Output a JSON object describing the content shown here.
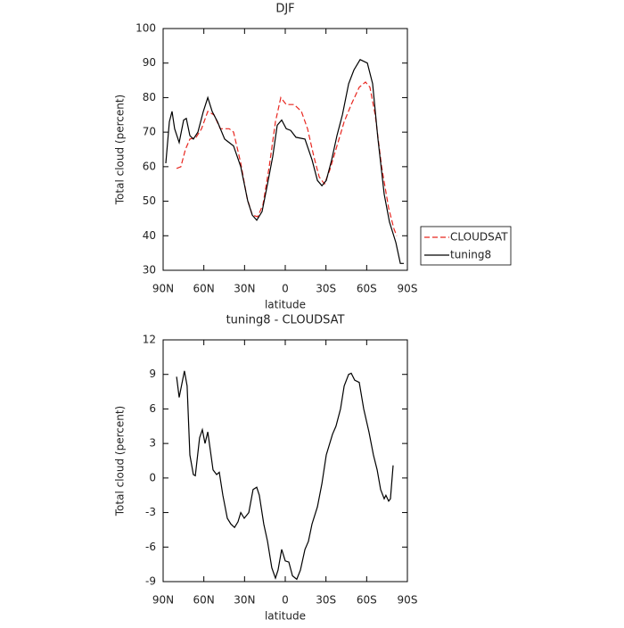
{
  "chart_data": [
    {
      "type": "line",
      "title": "DJF",
      "xlabel": "latitude",
      "ylabel": "Total cloud (percent)",
      "xlim": [
        90,
        -90
      ],
      "xticks": [
        {
          "value": 90,
          "label": "90N"
        },
        {
          "value": 60,
          "label": "60N"
        },
        {
          "value": 30,
          "label": "30N"
        },
        0,
        {
          "value": -30,
          "label": "30S"
        },
        {
          "value": -60,
          "label": "60S"
        },
        {
          "value": -90,
          "label": "90S"
        }
      ],
      "ylim": [
        30,
        100
      ],
      "yticks": [
        30,
        40,
        50,
        60,
        70,
        80,
        90,
        100
      ],
      "legend": "outside right",
      "series": [
        {
          "name": "CLOUDSAT",
          "color": "#e8261f",
          "dash": true,
          "x": [
            80.1,
            76.9,
            73.6,
            70.3,
            65.7,
            61.7,
            57.1,
            52.5,
            47.9,
            41.3,
            38.1,
            32.8,
            28.2,
            24.3,
            20.3,
            16.4,
            11.8,
            7.2,
            3.3,
            -0.7,
            -6.6,
            -11.9,
            -16.4,
            -21,
            -25,
            -28.9,
            -32.8,
            -38.1,
            -43.4,
            -48.6,
            -54.5,
            -59.1,
            -62.4,
            -66.3,
            -71,
            -76.2,
            -80.1,
            -82.1
          ],
          "values": [
            59.5,
            60,
            65,
            68,
            68.5,
            71,
            76,
            75,
            71,
            71,
            70,
            61,
            51,
            46,
            45.5,
            49,
            60,
            73,
            80,
            78,
            78,
            76,
            71,
            63,
            57,
            55,
            59,
            66,
            73,
            78,
            83,
            84.5,
            83,
            75,
            60,
            48,
            42,
            40
          ]
        },
        {
          "name": "tuning8",
          "color": "#000000",
          "dash": false,
          "x": [
            88,
            85.4,
            83.4,
            81.5,
            78.2,
            74.9,
            72.9,
            70.3,
            67.7,
            64.4,
            60.4,
            57.1,
            53.9,
            49.9,
            44.7,
            38.1,
            32.8,
            27.6,
            24.3,
            21,
            17.1,
            13.1,
            9.2,
            5.9,
            2.6,
            -0.7,
            -4,
            -7.9,
            -14.5,
            -19.7,
            -23.7,
            -27,
            -30.2,
            -34.2,
            -38.1,
            -42.1,
            -46.7,
            -50.6,
            -55.2,
            -60.5,
            -64.4,
            -68.3,
            -72.9,
            -76.8,
            -81.5,
            -84.8,
            -87.4
          ],
          "values": [
            61,
            73,
            76,
            71,
            67,
            73.5,
            74,
            69,
            68,
            70,
            76,
            80,
            76,
            73,
            68,
            66,
            60,
            50,
            46,
            44.5,
            47,
            55,
            63,
            72,
            73.5,
            71,
            70.5,
            68.5,
            68,
            62,
            56,
            54.5,
            56,
            62,
            69,
            75,
            84,
            88,
            91,
            90,
            84,
            68,
            52,
            44,
            38,
            32,
            32
          ]
        }
      ]
    },
    {
      "type": "line",
      "title": "tuning8 - CLOUDSAT",
      "xlabel": "latitude",
      "ylabel": "Total cloud (percent)",
      "xlim": [
        90,
        -90
      ],
      "xticks": [
        {
          "value": 90,
          "label": "90N"
        },
        {
          "value": 60,
          "label": "60N"
        },
        {
          "value": 30,
          "label": "30N"
        },
        0,
        {
          "value": -30,
          "label": "30S"
        },
        {
          "value": -60,
          "label": "60S"
        },
        {
          "value": -90,
          "label": "90S"
        }
      ],
      "ylim": [
        -9,
        12
      ],
      "yticks": [
        -9,
        -6,
        -3,
        0,
        3,
        6,
        9,
        12
      ],
      "series": [
        {
          "color": "#000000",
          "dash": false,
          "x": [
            80.1,
            78.2,
            74.3,
            72.3,
            70.3,
            67.7,
            66.3,
            63.1,
            61.1,
            59.1,
            57.1,
            53.2,
            50.6,
            48.6,
            46,
            42.7,
            40.1,
            37.4,
            34.8,
            32.8,
            30.2,
            26.9,
            23.7,
            21,
            19.1,
            15.8,
            13.1,
            9.9,
            7.2,
            5.3,
            2.6,
            0,
            -2.6,
            -5.3,
            -8.5,
            -11.2,
            -14.5,
            -17.1,
            -19.7,
            -23.7,
            -27,
            -30.2,
            -34.8,
            -37.4,
            -40.7,
            -43.4,
            -46.7,
            -48.6,
            -51.2,
            -54.5,
            -57.8,
            -61.7,
            -65,
            -67.7,
            -70.3,
            -72.9,
            -74.2,
            -76.2,
            -77.5,
            -79.5
          ],
          "values": [
            8.8,
            7,
            9.3,
            8,
            2,
            0.3,
            0.2,
            3.5,
            4.2,
            3,
            4,
            0.7,
            0.3,
            0.5,
            -1.5,
            -3.5,
            -4,
            -4.3,
            -3.8,
            -3,
            -3.5,
            -3,
            -1,
            -0.8,
            -1.5,
            -4,
            -5.5,
            -7.8,
            -8.7,
            -8,
            -6.2,
            -7.2,
            -7.3,
            -8.5,
            -8.8,
            -8,
            -6.2,
            -5.5,
            -4,
            -2.5,
            -0.5,
            2,
            3.8,
            4.5,
            6,
            8,
            9,
            9.1,
            8.5,
            8.3,
            6,
            4,
            2,
            0.7,
            -1,
            -1.8,
            -1.5,
            -2,
            -1.8,
            1.1
          ]
        }
      ]
    }
  ]
}
